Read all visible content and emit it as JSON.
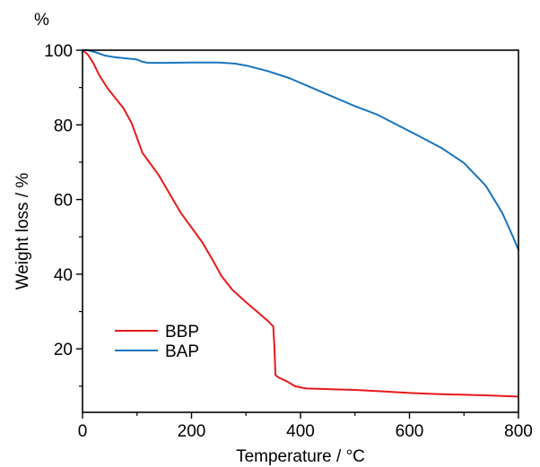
{
  "chart_data": {
    "type": "line",
    "xlabel": "Temperature / °C",
    "ylabel": "Weight loss / %",
    "y_unit": "%",
    "xlim": [
      0,
      800
    ],
    "ylim": [
      3,
      100
    ],
    "x_ticks": [
      0,
      200,
      400,
      600,
      800
    ],
    "x_tick_labels": [
      "0",
      "200",
      "400",
      "600",
      "800"
    ],
    "x_minor_ticks": [
      100,
      300,
      500,
      700
    ],
    "y_ticks": [
      20,
      40,
      60,
      80,
      100
    ],
    "y_tick_labels": [
      "20",
      "40",
      "60",
      "80",
      "100"
    ],
    "y_minor_ticks": [
      10,
      30,
      50,
      70,
      90
    ],
    "grid": false,
    "legend_position": "lower-left",
    "series": [
      {
        "name": "BBP",
        "color": "#e8191b",
        "points": [
          [
            0,
            100
          ],
          [
            10,
            98.8
          ],
          [
            20,
            96.5
          ],
          [
            30,
            93.5
          ],
          [
            45,
            90
          ],
          [
            60,
            87.2
          ],
          [
            75,
            84.5
          ],
          [
            90,
            80.5
          ],
          [
            100,
            76.5
          ],
          [
            110,
            72.5
          ],
          [
            120,
            70.5
          ],
          [
            140,
            66.5
          ],
          [
            160,
            61.5
          ],
          [
            180,
            56.5
          ],
          [
            200,
            52.5
          ],
          [
            220,
            48.5
          ],
          [
            240,
            43.5
          ],
          [
            255,
            39.5
          ],
          [
            275,
            35.8
          ],
          [
            300,
            32.5
          ],
          [
            320,
            30
          ],
          [
            340,
            27.5
          ],
          [
            350,
            26
          ],
          [
            352,
            21
          ],
          [
            354,
            13
          ],
          [
            360,
            12.3
          ],
          [
            375,
            11.3
          ],
          [
            390,
            10
          ],
          [
            410,
            9.4
          ],
          [
            450,
            9.2
          ],
          [
            500,
            9
          ],
          [
            550,
            8.6
          ],
          [
            600,
            8.2
          ],
          [
            650,
            7.9
          ],
          [
            700,
            7.7
          ],
          [
            750,
            7.5
          ],
          [
            800,
            7.2
          ]
        ]
      },
      {
        "name": "BAP",
        "color": "#1874bd",
        "points": [
          [
            0,
            100
          ],
          [
            10,
            100
          ],
          [
            25,
            99.4
          ],
          [
            40,
            98.6
          ],
          [
            60,
            98.1
          ],
          [
            80,
            97.8
          ],
          [
            100,
            97.5
          ],
          [
            110,
            96.9
          ],
          [
            120,
            96.6
          ],
          [
            150,
            96.6
          ],
          [
            200,
            96.7
          ],
          [
            250,
            96.7
          ],
          [
            280,
            96.4
          ],
          [
            300,
            95.9
          ],
          [
            340,
            94.4
          ],
          [
            380,
            92.5
          ],
          [
            420,
            90
          ],
          [
            460,
            87.5
          ],
          [
            500,
            85
          ],
          [
            540,
            82.8
          ],
          [
            580,
            79.8
          ],
          [
            620,
            76.8
          ],
          [
            660,
            73.7
          ],
          [
            700,
            69.8
          ],
          [
            740,
            63.7
          ],
          [
            770,
            56.5
          ],
          [
            790,
            50
          ],
          [
            800,
            46.5
          ]
        ]
      }
    ]
  }
}
